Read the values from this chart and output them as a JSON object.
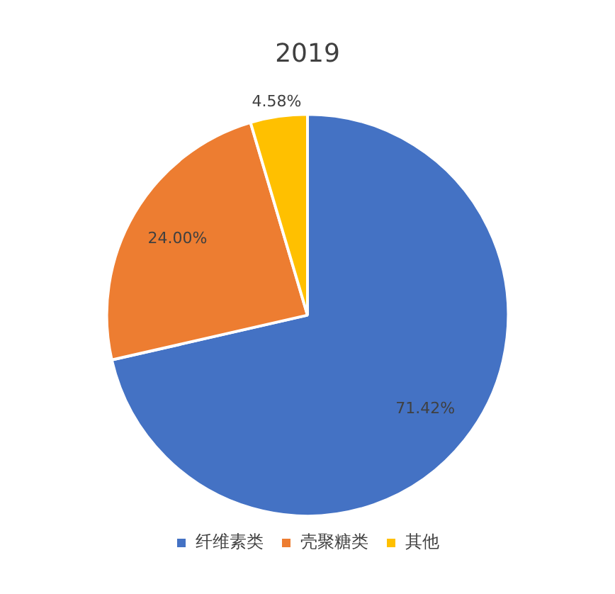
{
  "chart_data": {
    "type": "pie",
    "title": "2019",
    "categories": [
      "纤维素类",
      "壳聚糖类",
      "其他"
    ],
    "values": [
      71.42,
      24.0,
      4.58
    ],
    "colors": [
      "#4472c4",
      "#ed7d31",
      "#ffc000"
    ],
    "value_labels": [
      "71.42%",
      "24.00%",
      "4.58%"
    ],
    "legend": "bottom"
  }
}
